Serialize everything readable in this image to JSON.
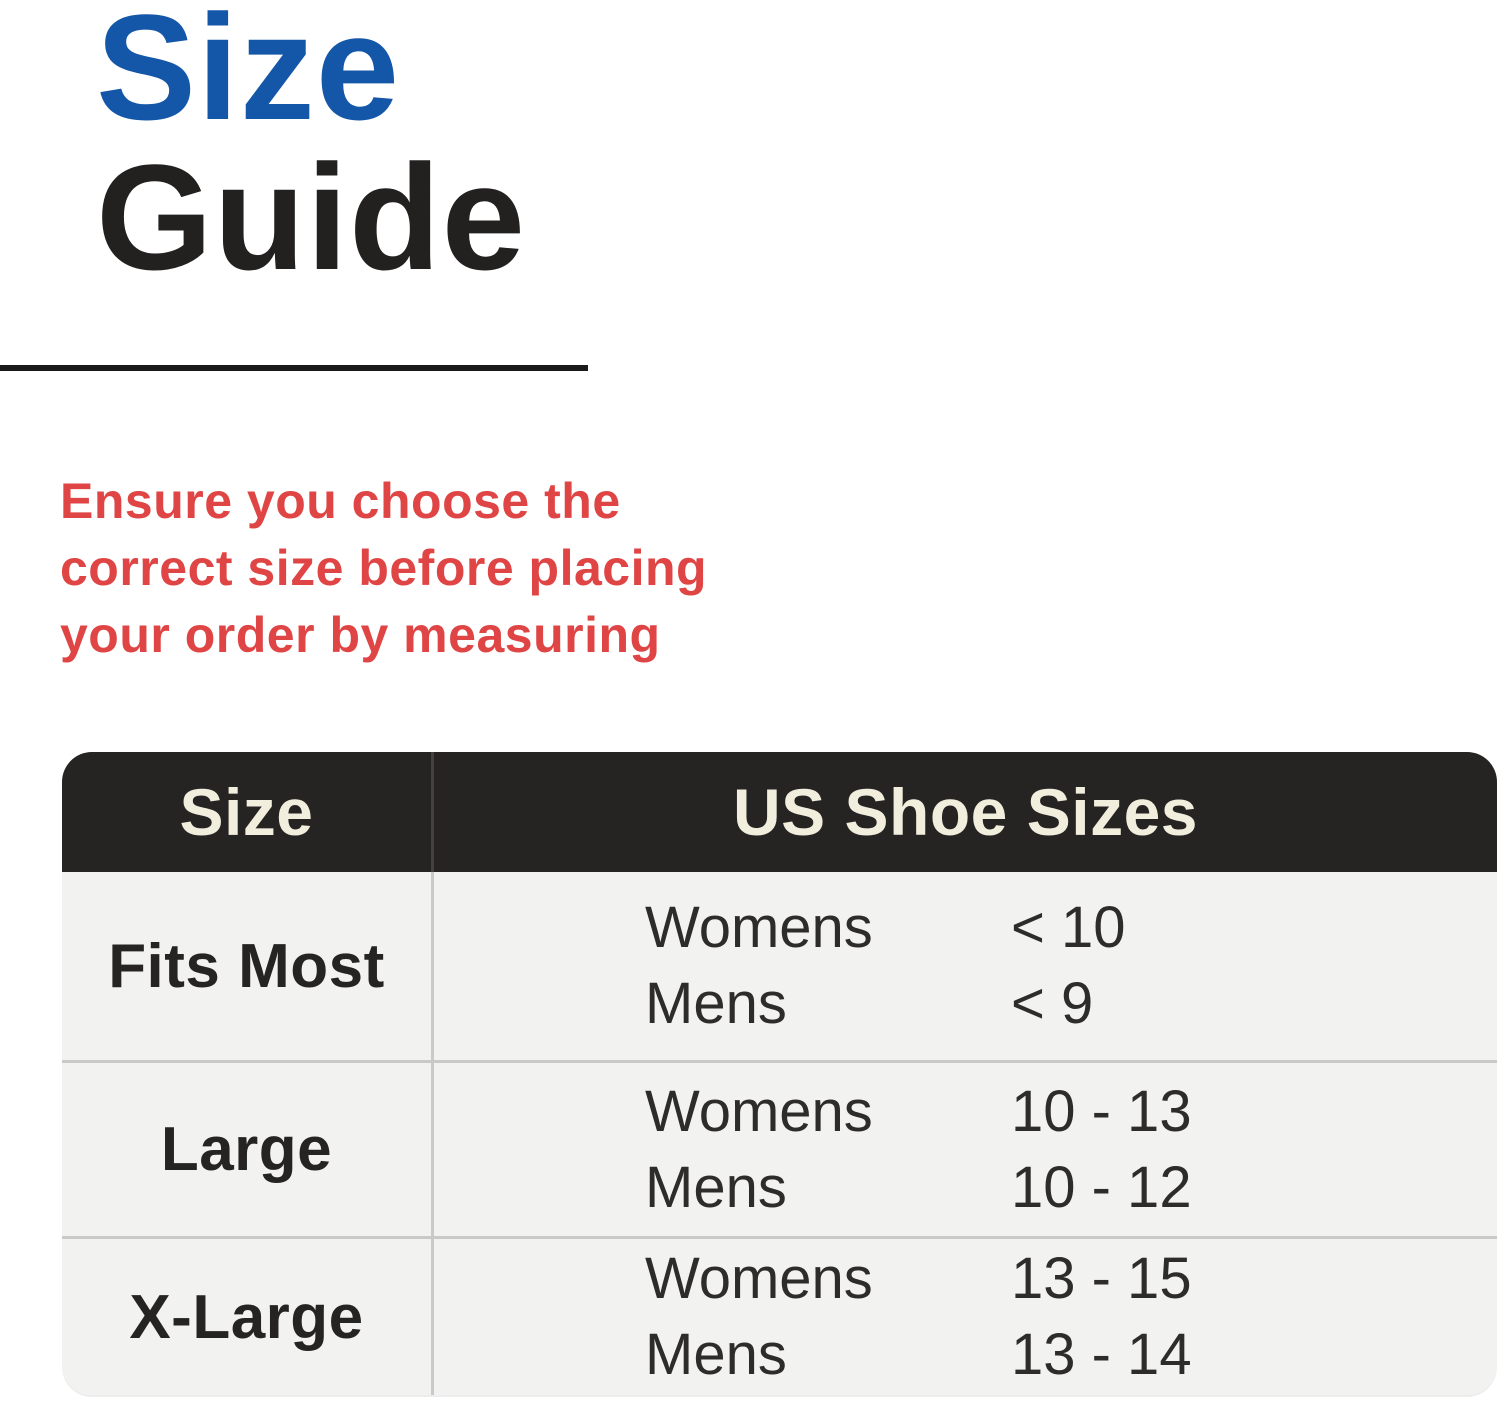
{
  "title": {
    "line1": "Size",
    "line2": "Guide"
  },
  "intro": {
    "line1": "Ensure you choose the",
    "line2": "correct size before placing",
    "line3": "your order by measuring"
  },
  "table": {
    "header": {
      "size": "Size",
      "us": "US Shoe Sizes"
    },
    "rows": [
      {
        "size": "Fits Most",
        "entries": [
          {
            "label": "Womens",
            "value": "< 10"
          },
          {
            "label": "Mens",
            "value": "< 9"
          }
        ]
      },
      {
        "size": "Large",
        "entries": [
          {
            "label": "Womens",
            "value": "10 - 13"
          },
          {
            "label": "Mens",
            "value": "10 - 12"
          }
        ]
      },
      {
        "size": "X-Large",
        "entries": [
          {
            "label": "Womens",
            "value": "13 - 15"
          },
          {
            "label": "Mens",
            "value": "13 - 14"
          }
        ]
      }
    ]
  },
  "colors": {
    "accent_blue": "#1456a8",
    "accent_red": "#e04545",
    "header_bg": "#262323",
    "header_text": "#f2eedd",
    "row_bg": "#f2f2f0",
    "divider": "#c9c9c9"
  }
}
